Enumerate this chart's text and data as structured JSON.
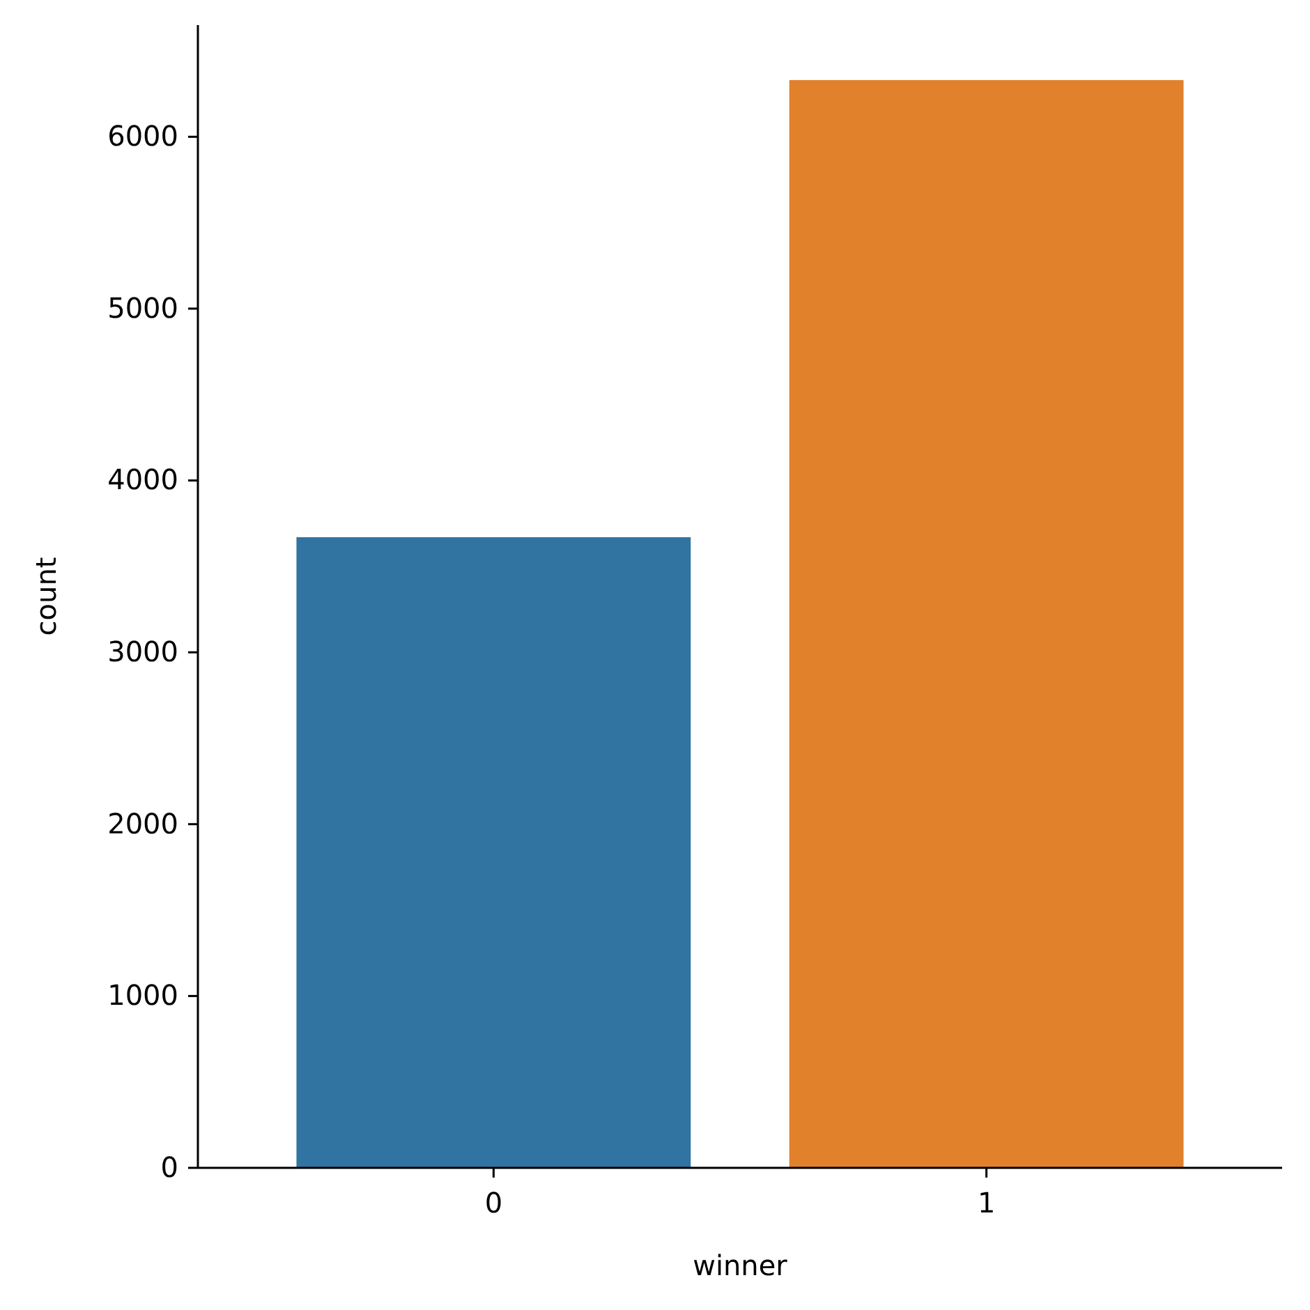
{
  "chart_data": {
    "type": "bar",
    "xlabel": "winner",
    "ylabel": "count",
    "categories": [
      "0",
      "1"
    ],
    "values": [
      3670,
      6330
    ],
    "colors": [
      "#3274a1",
      "#e1812c"
    ],
    "ylim": [
      0,
      6650
    ],
    "yticks": [
      0,
      1000,
      2000,
      3000,
      4000,
      5000,
      6000
    ],
    "grid": false
  }
}
